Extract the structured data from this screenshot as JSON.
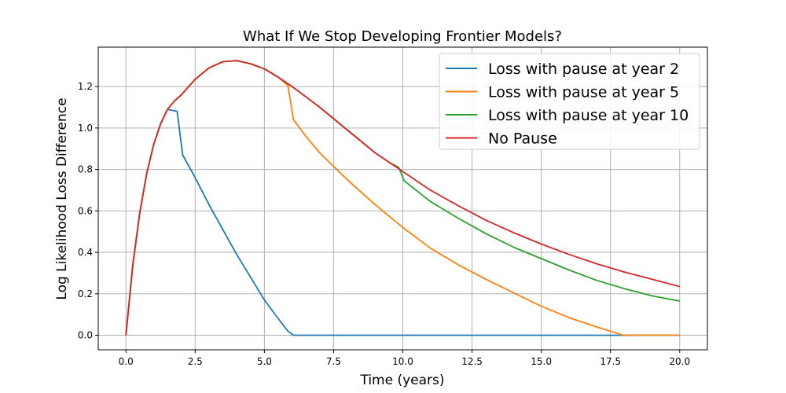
{
  "chart_data": {
    "type": "line",
    "title": "What If We Stop Developing Frontier Models?",
    "xlabel": "Time (years)",
    "ylabel": "Log Likelihood Loss Difference",
    "xlim": [
      -1,
      21
    ],
    "ylim": [
      -0.07,
      1.39
    ],
    "xticks": [
      0.0,
      2.5,
      5.0,
      7.5,
      10.0,
      12.5,
      15.0,
      17.5,
      20.0
    ],
    "xtick_labels": [
      "0.0",
      "2.5",
      "5.0",
      "7.5",
      "10.0",
      "12.5",
      "15.0",
      "17.5",
      "20.0"
    ],
    "yticks": [
      0.0,
      0.2,
      0.4,
      0.6,
      0.8,
      1.0,
      1.2
    ],
    "ytick_labels": [
      "0.0",
      "0.2",
      "0.4",
      "0.6",
      "0.8",
      "1.0",
      "1.2"
    ],
    "grid": true,
    "legend_position": "top-right",
    "series": [
      {
        "name": "Loss with pause at year 2",
        "color": "#1f77b4",
        "x": [
          0,
          0.25,
          0.5,
          0.75,
          1.0,
          1.25,
          1.5,
          1.85,
          2.05,
          2.5,
          3.0,
          3.5,
          4.0,
          4.5,
          5.0,
          5.5,
          5.85,
          6.05,
          7.5,
          10.0,
          12.5,
          15.0,
          17.5,
          20.0
        ],
        "y": [
          0,
          0.34,
          0.59,
          0.78,
          0.92,
          1.02,
          1.09,
          1.08,
          0.87,
          0.76,
          0.63,
          0.51,
          0.39,
          0.28,
          0.17,
          0.08,
          0.02,
          0.0,
          0.0,
          0.0,
          0.0,
          0.0,
          0.0,
          0.0
        ]
      },
      {
        "name": "Loss with pause at year 5",
        "color": "#ff7f0e",
        "x": [
          0,
          0.25,
          0.5,
          0.75,
          1.0,
          1.25,
          1.5,
          1.75,
          2.0,
          2.5,
          3.0,
          3.5,
          4.0,
          4.5,
          5.0,
          5.5,
          5.85,
          6.05,
          6.5,
          7.0,
          7.5,
          8.0,
          9.0,
          10.0,
          11.0,
          12.0,
          13.0,
          14.0,
          15.0,
          16.0,
          17.0,
          17.9,
          18.0,
          20.0
        ],
        "y": [
          0,
          0.34,
          0.59,
          0.78,
          0.92,
          1.02,
          1.09,
          1.13,
          1.16,
          1.235,
          1.29,
          1.32,
          1.325,
          1.31,
          1.285,
          1.245,
          1.205,
          1.04,
          0.96,
          0.88,
          0.815,
          0.75,
          0.63,
          0.52,
          0.42,
          0.34,
          0.27,
          0.205,
          0.14,
          0.085,
          0.04,
          0.003,
          0.0,
          0.0
        ]
      },
      {
        "name": "Loss with pause at year 10",
        "color": "#2ca02c",
        "x": [
          0,
          0.25,
          0.5,
          0.75,
          1.0,
          1.25,
          1.5,
          1.75,
          2.0,
          2.5,
          3.0,
          3.5,
          4.0,
          4.5,
          5.0,
          5.5,
          6.0,
          6.5,
          7.0,
          7.5,
          8.0,
          8.5,
          9.0,
          9.5,
          9.85,
          10.05,
          11.0,
          12.0,
          13.0,
          14.0,
          15.0,
          16.0,
          17.0,
          18.0,
          19.0,
          20.0
        ],
        "y": [
          0,
          0.34,
          0.59,
          0.78,
          0.92,
          1.02,
          1.09,
          1.13,
          1.16,
          1.235,
          1.29,
          1.32,
          1.325,
          1.31,
          1.285,
          1.245,
          1.2,
          1.15,
          1.1,
          1.045,
          0.99,
          0.935,
          0.88,
          0.835,
          0.81,
          0.745,
          0.645,
          0.565,
          0.49,
          0.425,
          0.37,
          0.315,
          0.265,
          0.225,
          0.19,
          0.165
        ]
      },
      {
        "name": "No Pause",
        "color": "#d62728",
        "x": [
          0,
          0.25,
          0.5,
          0.75,
          1.0,
          1.25,
          1.5,
          1.75,
          2.0,
          2.5,
          3.0,
          3.5,
          4.0,
          4.5,
          5.0,
          5.5,
          6.0,
          6.5,
          7.0,
          7.5,
          8.0,
          8.5,
          9.0,
          9.5,
          10.0,
          11.0,
          12.0,
          13.0,
          14.0,
          15.0,
          16.0,
          17.0,
          18.0,
          19.0,
          20.0
        ],
        "y": [
          0,
          0.34,
          0.59,
          0.78,
          0.92,
          1.02,
          1.09,
          1.13,
          1.16,
          1.235,
          1.29,
          1.32,
          1.325,
          1.31,
          1.285,
          1.245,
          1.2,
          1.15,
          1.1,
          1.045,
          0.99,
          0.935,
          0.88,
          0.835,
          0.79,
          0.7,
          0.625,
          0.555,
          0.495,
          0.44,
          0.39,
          0.345,
          0.305,
          0.27,
          0.235
        ]
      }
    ]
  }
}
